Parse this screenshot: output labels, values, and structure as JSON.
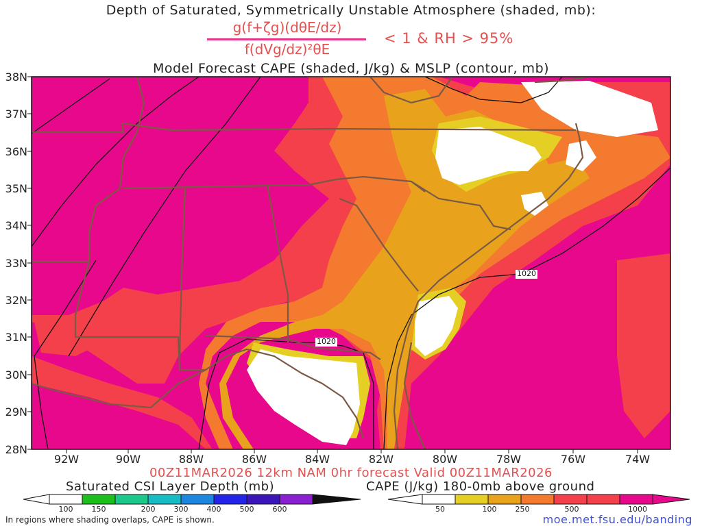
{
  "header": {
    "title_line1": "Depth of Saturated, Symmetrically Unstable Atmosphere (shaded, mb):",
    "formula_numerator": "g(f+ζg)(dθE/dz)",
    "formula_denominator": "f(dVg/dz)²θE",
    "condition": "< 1 & RH > 95%",
    "title_line3": "Model Forecast CAPE (shaded, J/kg) & MSLP (contour, mb)"
  },
  "map": {
    "lat_labels": [
      "38N",
      "37N",
      "36N",
      "35N",
      "34N",
      "33N",
      "32N",
      "31N",
      "30N",
      "29N",
      "28N"
    ],
    "lon_labels": [
      "92W",
      "90W",
      "88W",
      "86W",
      "84W",
      "82W",
      "80W",
      "78W",
      "76W",
      "74W"
    ],
    "contour_labels": [
      "1020",
      "1020"
    ],
    "colors": {
      "magenta": "#e8088c",
      "red": "#f4404a",
      "orange": "#f47a30",
      "amber": "#e8a21c",
      "yellow": "#e6cf24",
      "border": "#7a5a44"
    }
  },
  "footer": {
    "valid_text": "00Z11MAR2026 12km NAM 0hr forecast Valid 00Z11MAR2026",
    "csi_title": "Saturated CSI Layer Depth (mb)",
    "csi_ticks": [
      "100",
      "150",
      "200",
      "300",
      "400",
      "500",
      "600"
    ],
    "cape_title": "CAPE (J/kg) 180-0mb above ground",
    "cape_ticks": [
      "50",
      "100",
      "250",
      "500",
      "1000"
    ],
    "note": "In regions where shading overlaps, CAPE is shown.",
    "url": "moe.met.fsu.edu/banding"
  }
}
